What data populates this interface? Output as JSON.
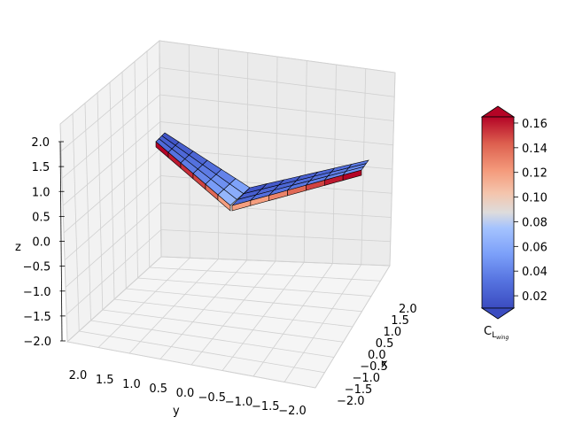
{
  "chart_data": {
    "type": "surface3d",
    "title": "",
    "x_axis": {
      "label": "x",
      "ticks": [
        "−2.0",
        "−1.5",
        "−1.0",
        "−0.5",
        "0.0",
        "0.5",
        "1.0",
        "1.5",
        "2.0"
      ],
      "range": [
        -2.0,
        2.0
      ]
    },
    "y_axis": {
      "label": "y",
      "ticks": [
        "2.0",
        "1.5",
        "1.0",
        "0.5",
        "0.0",
        "−0.5",
        "−1.0",
        "−1.5",
        "−2.0"
      ],
      "range": [
        -2.0,
        2.0
      ]
    },
    "z_axis": {
      "label": "z",
      "ticks": [
        "−2.0",
        "−1.5",
        "−1.0",
        "−0.5",
        "0.0",
        "0.5",
        "1.0",
        "1.5",
        "2.0"
      ],
      "range": [
        -2.0,
        2.0
      ]
    },
    "grid": true,
    "colorbar": {
      "label_main": "C",
      "label_sub": "L",
      "label_subsub": "wing",
      "ticks": [
        "0.02",
        "0.04",
        "0.06",
        "0.08",
        "0.10",
        "0.12",
        "0.14",
        "0.16"
      ],
      "tick_values": [
        0.02,
        0.04,
        0.06,
        0.08,
        0.1,
        0.12,
        0.14,
        0.16
      ],
      "range": [
        0.01,
        0.165
      ],
      "colormap": "coolwarm",
      "extend": "both"
    },
    "surface": {
      "description_free": true,
      "colormap_low": "#3b4cc0",
      "colormap_mid": "#dddddd",
      "colormap_high": "#b40426",
      "left_wing_top_values": [
        0.015,
        0.02,
        0.025,
        0.03,
        0.04,
        0.055
      ],
      "right_wing_top_values": [
        0.015,
        0.018,
        0.02,
        0.022,
        0.025,
        0.03,
        0.035
      ],
      "left_wing_underside_values": [
        0.165,
        0.16,
        0.155,
        0.15,
        0.14,
        0.12
      ],
      "right_wing_underside_values": [
        0.12,
        0.12,
        0.13,
        0.14,
        0.15,
        0.16,
        0.165
      ]
    }
  }
}
